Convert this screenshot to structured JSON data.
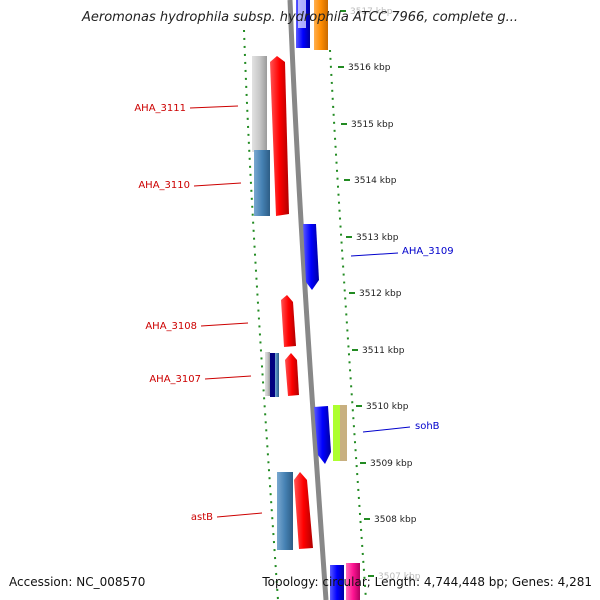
{
  "title": "Aeromonas hydrophila subsp. hydrophila ATCC 7966, complete g...",
  "footer": {
    "accession": "Accession: NC_008570",
    "topology": "Topology: circular; Length: 4,744,448 bp; Genes: 4,281"
  },
  "ruler_ticks": [
    {
      "label": "3517 kbp",
      "partial": true
    },
    {
      "label": "3516 kbp"
    },
    {
      "label": "3515 kbp"
    },
    {
      "label": "3514 kbp"
    },
    {
      "label": "3513 kbp"
    },
    {
      "label": "3512 kbp"
    },
    {
      "label": "3511 kbp"
    },
    {
      "label": "3510 kbp"
    },
    {
      "label": "3509 kbp"
    },
    {
      "label": "3508 kbp"
    },
    {
      "label": "3507 kbp",
      "partial": true
    }
  ],
  "gene_labels": [
    {
      "name": "AHA_3111",
      "color": "#cc0000",
      "side": "left"
    },
    {
      "name": "AHA_3110",
      "color": "#cc0000",
      "side": "left"
    },
    {
      "name": "AHA_3109",
      "color": "#0000cc",
      "side": "right"
    },
    {
      "name": "AHA_3108",
      "color": "#cc0000",
      "side": "left"
    },
    {
      "name": "AHA_3107",
      "color": "#cc0000",
      "side": "left"
    },
    {
      "name": "sohB",
      "color": "#0000cc",
      "side": "right"
    },
    {
      "name": "astB",
      "color": "#cc0000",
      "side": "left"
    }
  ],
  "colors": {
    "forward_cds": "#ff0000",
    "reverse_cds": "#0000ff",
    "backbone": "#888888",
    "tick_green": "#228b22",
    "steelblue": "#4682b4",
    "orange": "#ff8c00",
    "lime": "#adff2f",
    "pink": "#ff1493"
  }
}
